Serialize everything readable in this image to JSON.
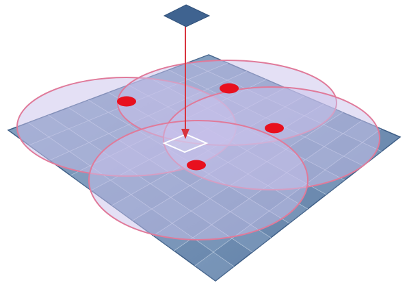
{
  "colors": {
    "background": "#ffffff",
    "grid_fill": "#6f8eb3",
    "grid_fill_light": "#8fa9c8",
    "grid_line": "#c9d6e6",
    "grid_edge": "#3f5f87",
    "circle_fill": "#c9c2ec",
    "circle_stroke": "#e07a9a",
    "node": "#e8101e",
    "arrow": "#d8333d",
    "marker_diamond": "#3f6390",
    "target_cell": "#ffffff"
  },
  "diagram": {
    "grid_cells": 10,
    "circles": [
      {
        "name": "coverage-circle-left"
      },
      {
        "name": "coverage-circle-top"
      },
      {
        "name": "coverage-circle-right"
      },
      {
        "name": "coverage-circle-bottom"
      }
    ],
    "nodes": [
      {
        "name": "node-left"
      },
      {
        "name": "node-top"
      },
      {
        "name": "node-right"
      },
      {
        "name": "node-bottom"
      }
    ],
    "icons": {
      "marker": "diamond-marker-icon",
      "arrow": "down-arrow-icon",
      "target": "target-cell-icon"
    }
  }
}
